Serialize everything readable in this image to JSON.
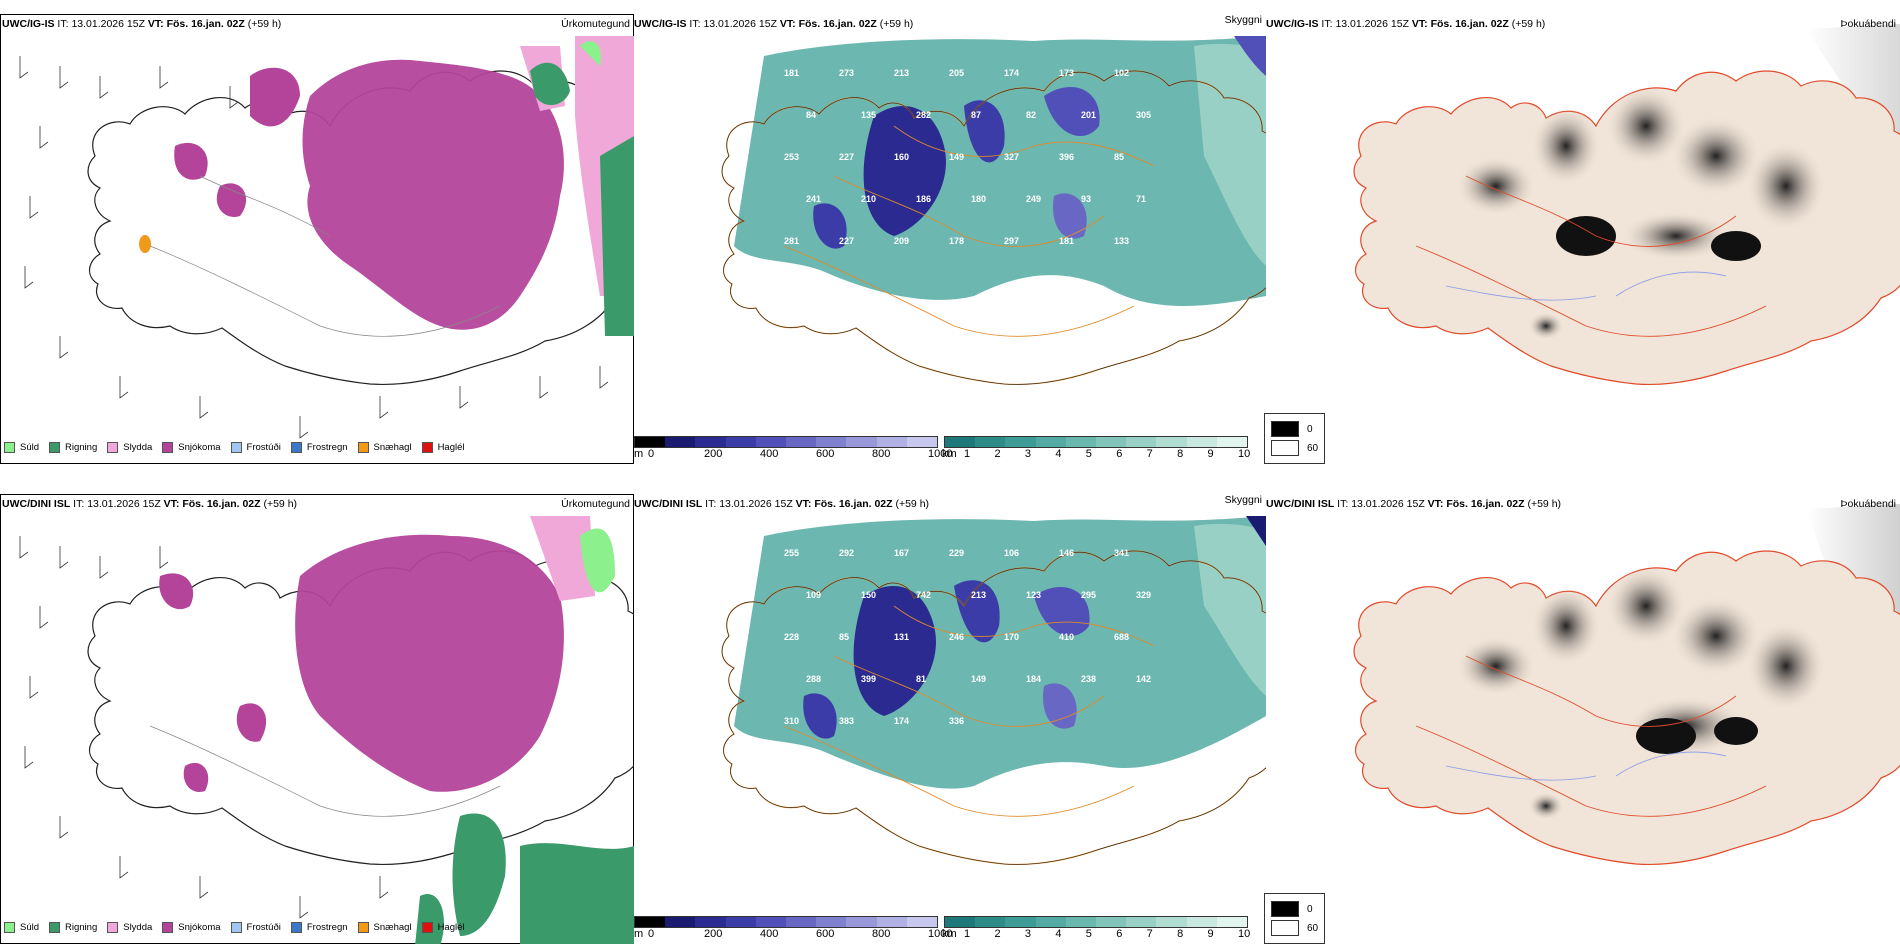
{
  "rows": [
    {
      "model": "UWC/IG-IS",
      "it_label": "IT:",
      "it_value": "13.01.2026 15Z",
      "vt_label": "VT:",
      "vt_value": "Fös. 16.jan. 02Z",
      "lead": "(+59 h)"
    },
    {
      "model": "UWC/DINI ISL",
      "it_label": "IT:",
      "it_value": "13.01.2026 15Z",
      "vt_label": "VT:",
      "vt_value": "Fös. 16.jan. 02Z",
      "lead": "(+59 h)"
    }
  ],
  "panel_titles": {
    "precip": "Úrkomutegund",
    "vis": "Skyggni",
    "fog": "Þokuábendi"
  },
  "precip_legend": [
    {
      "label": "Súld",
      "color": "#8cf08c"
    },
    {
      "label": "Rigning",
      "color": "#3a9a6a"
    },
    {
      "label": "Slydda",
      "color": "#f0a8d8"
    },
    {
      "label": "Snjókoma",
      "color": "#b4449a"
    },
    {
      "label": "Frostúði",
      "color": "#9ec8f0"
    },
    {
      "label": "Frostregn",
      "color": "#3a78c8"
    },
    {
      "label": "Snæhagl",
      "color": "#f09a1a"
    },
    {
      "label": "Haglél",
      "color": "#e01010"
    }
  ],
  "vis_cbar_m": {
    "unit": "m",
    "ticks": [
      "0",
      "200",
      "400",
      "600",
      "800",
      "1000"
    ],
    "colors": [
      "#000000",
      "#1a1a70",
      "#2a2a90",
      "#3c3ca8",
      "#5050b8",
      "#6868c4",
      "#8080d0",
      "#9898da",
      "#b0b0e4",
      "#c8c8ee"
    ]
  },
  "vis_cbar_km": {
    "unit": "km",
    "ticks": [
      "1",
      "2",
      "3",
      "4",
      "5",
      "6",
      "7",
      "8",
      "9",
      "10"
    ],
    "colors": [
      "#1e7a7a",
      "#2e8c88",
      "#3e9c96",
      "#52aaa2",
      "#68b8ae",
      "#80c4ba",
      "#98d0c6",
      "#b0dcd2",
      "#c8e8e0",
      "#e2f4ee"
    ]
  },
  "fog_legend": [
    {
      "label": "0",
      "color": "#000000"
    },
    {
      "label": "60",
      "color": "#ffffff"
    }
  ],
  "vis_values_top": [
    "181",
    "273",
    "213",
    "205",
    "174",
    "173",
    "102",
    "84",
    "135",
    "282",
    "87",
    "82",
    "201",
    "305",
    "253",
    "227",
    "160",
    "149",
    "327",
    "396",
    "85",
    "241",
    "210",
    "186",
    "180",
    "249",
    "93",
    "71",
    "281",
    "227",
    "209",
    "178",
    "297",
    "181",
    "133"
  ],
  "vis_values_bottom": [
    "255",
    "292",
    "167",
    "229",
    "106",
    "146",
    "341",
    "109",
    "150",
    "742",
    "213",
    "123",
    "295",
    "329",
    "228",
    "85",
    "131",
    "246",
    "170",
    "410",
    "688",
    "288",
    "399",
    "81",
    "149",
    "184",
    "238",
    "142",
    "310",
    "383",
    "174",
    "336"
  ]
}
